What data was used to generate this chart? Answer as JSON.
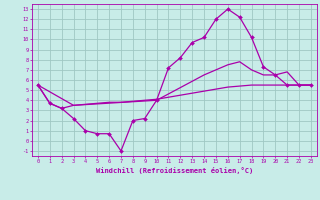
{
  "xlabel": "Windchill (Refroidissement éolien,°C)",
  "bg_color": "#c8ece8",
  "line_color": "#aa00aa",
  "grid_color": "#a0c8c4",
  "xlim": [
    -0.5,
    23.5
  ],
  "ylim": [
    -1.5,
    13.5
  ],
  "xticks": [
    0,
    1,
    2,
    3,
    4,
    5,
    6,
    7,
    8,
    9,
    10,
    11,
    12,
    13,
    14,
    15,
    16,
    17,
    18,
    19,
    20,
    21,
    22,
    23
  ],
  "yticks": [
    -1,
    0,
    1,
    2,
    3,
    4,
    5,
    6,
    7,
    8,
    9,
    10,
    11,
    12,
    13
  ],
  "line1_x": [
    0,
    1,
    2,
    3,
    4,
    5,
    6,
    7,
    8,
    9,
    10,
    11,
    12,
    13,
    14,
    15,
    16,
    17,
    18,
    19,
    20,
    21,
    22,
    23
  ],
  "line1_y": [
    5.5,
    3.7,
    3.2,
    2.2,
    1.0,
    0.7,
    0.7,
    -1.0,
    2.0,
    2.2,
    4.0,
    7.2,
    8.2,
    9.7,
    10.2,
    12.0,
    13.0,
    12.2,
    10.2,
    7.3,
    6.5,
    5.5,
    5.5,
    5.5
  ],
  "line2_x": [
    0,
    1,
    2,
    3,
    4,
    5,
    6,
    7,
    8,
    9,
    10,
    11,
    12,
    13,
    14,
    15,
    16,
    17,
    18,
    19,
    20,
    21,
    22,
    23
  ],
  "line2_y": [
    5.5,
    3.7,
    3.2,
    3.5,
    3.6,
    3.7,
    3.8,
    3.8,
    3.9,
    4.0,
    4.1,
    4.3,
    4.5,
    4.7,
    4.9,
    5.1,
    5.3,
    5.4,
    5.5,
    5.5,
    5.5,
    5.5,
    5.5,
    5.5
  ],
  "line3_x": [
    0,
    3,
    10,
    14,
    15,
    16,
    17,
    18,
    19,
    20,
    21,
    22,
    23
  ],
  "line3_y": [
    5.5,
    3.5,
    4.0,
    6.5,
    7.0,
    7.5,
    7.8,
    7.0,
    6.5,
    6.5,
    6.8,
    5.5,
    5.5
  ]
}
